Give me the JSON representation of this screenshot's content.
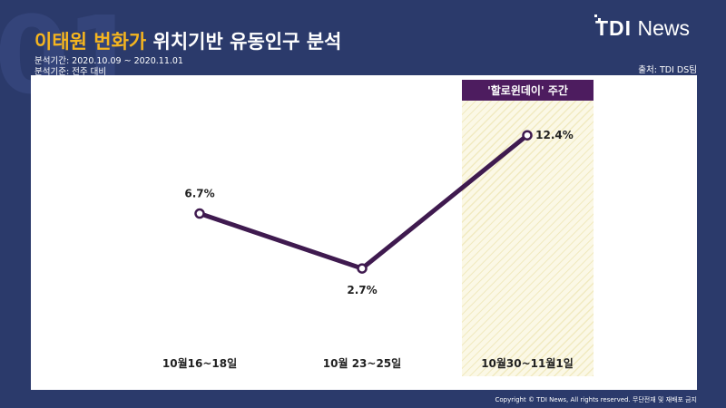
{
  "background_number": "01",
  "title": {
    "highlight": "이태원 번화가",
    "rest": " 위치기반 유동인구 분석"
  },
  "meta": {
    "period": "분석기간: 2020.10.09 ~ 2020.11.01",
    "basis": "분석기준: 전주 대비"
  },
  "logo": {
    "bold": "TDI",
    "light": "News"
  },
  "source": "출처: TDI DS팀",
  "highlight_label": "'할로윈데이' 주간",
  "footer": "Copyright © TDI News, All rights reserved. 무단전재 및 재배포 금지",
  "colors": {
    "background": "#2b3a6b",
    "accent": "#f5b51f",
    "line": "#3f1a4f",
    "highlight_band": "#fbf8e6",
    "label_box": "#4d1c5f"
  },
  "chart_data": {
    "type": "line",
    "title": "이태원 번화가 위치기반 유동인구 분석",
    "categories": [
      "10월16~18일",
      "10월 23~25일",
      "10월30~11월1일"
    ],
    "values": [
      6.7,
      2.7,
      12.4
    ],
    "data_labels": [
      "6.7%",
      "2.7%",
      "12.4%"
    ],
    "unit": "%",
    "ylim": [
      0,
      14
    ],
    "grid": false,
    "legend": "none",
    "highlighted_category": "10월30~11월1일"
  }
}
